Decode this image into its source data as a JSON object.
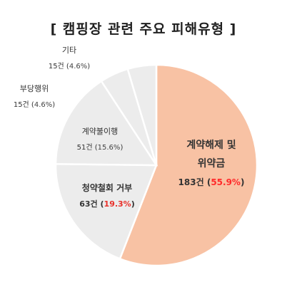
{
  "chart_data": {
    "type": "pie",
    "title": "[ 캠핑장 관련 주요 피해유형 ]",
    "slices": [
      {
        "name_lines": [
          "계약해제 및",
          "위약금"
        ],
        "count_text": "183건",
        "percent_text": "55.9%",
        "value": 55.9,
        "color": "#f8c2a4",
        "bold": true,
        "percent_color": "#ff2a2a"
      },
      {
        "name_lines": [
          "청약철회 거부"
        ],
        "count_text": "63건",
        "percent_text": "19.3%",
        "value": 19.3,
        "color": "#ececec",
        "bold": true,
        "percent_color": "#e8302a"
      },
      {
        "name_lines": [
          "계약불이행"
        ],
        "count_text": "51건",
        "percent_text": "15.6%",
        "value": 15.6,
        "color": "#ececec",
        "bold": false,
        "percent_color": "#444444"
      },
      {
        "name_lines": [
          "부당행위"
        ],
        "count_text": "15건",
        "percent_text": "4.6%",
        "value": 4.6,
        "color": "#ececec",
        "bold": false,
        "percent_color": "#444444"
      },
      {
        "name_lines": [
          "기타"
        ],
        "count_text": "15건",
        "percent_text": "4.6%",
        "value": 4.6,
        "color": "#ececec",
        "bold": false,
        "percent_color": "#444444"
      }
    ],
    "start_angle_deg": 0,
    "direction": "clockwise",
    "legend": "none"
  }
}
